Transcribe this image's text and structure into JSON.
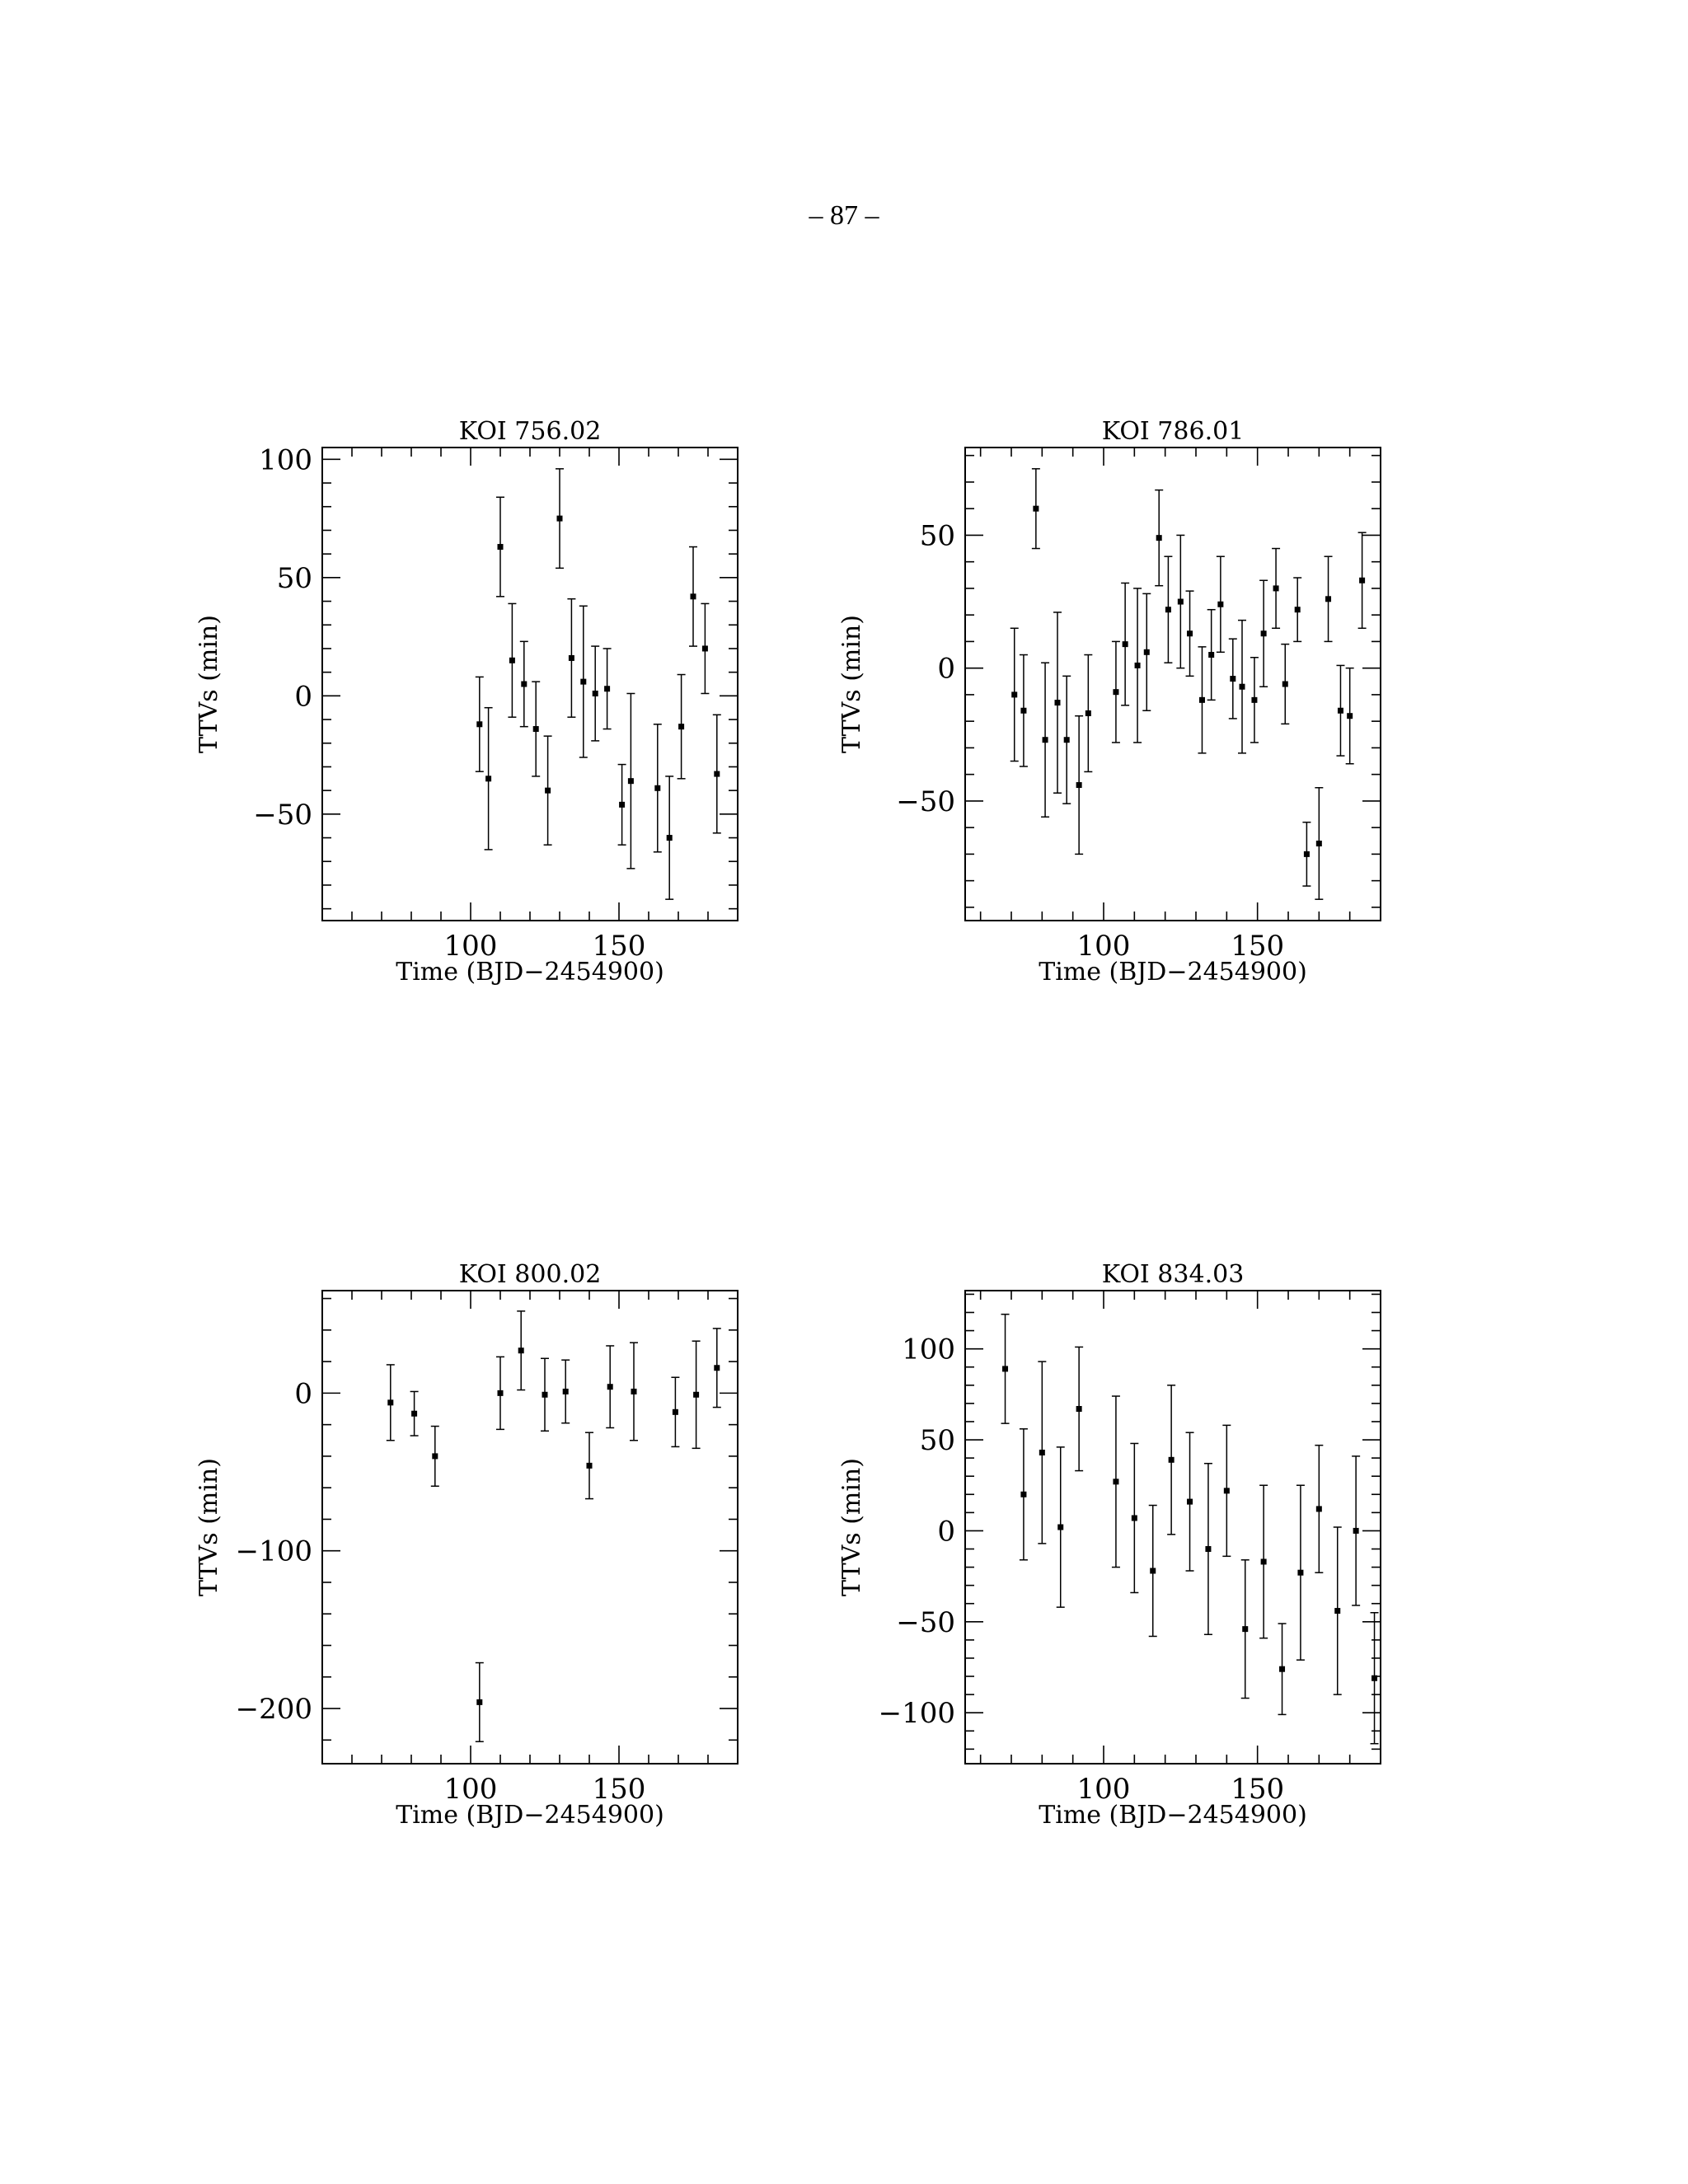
{
  "page": {
    "number": "– 87 –"
  },
  "chart_data": [
    {
      "type": "scatter",
      "title": "KOI 756.02",
      "xlabel": "Time (BJD−2454900)",
      "ylabel": "TTVs (min)",
      "xlim": [
        50,
        190
      ],
      "ylim": [
        -95,
        105
      ],
      "xticks": [
        {
          "v": 100,
          "label": "100"
        },
        {
          "v": 150,
          "label": "150"
        }
      ],
      "yticks": [
        {
          "v": 100,
          "label": "100"
        },
        {
          "v": 50,
          "label": "50"
        },
        {
          "v": 0,
          "label": "0"
        },
        {
          "v": -50,
          "label": "−50"
        }
      ],
      "series": [
        {
          "points": [
            {
              "x": 103,
              "y": -12,
              "err": 20
            },
            {
              "x": 106,
              "y": -35,
              "err": 30
            },
            {
              "x": 110,
              "y": 63,
              "err": 21
            },
            {
              "x": 114,
              "y": 15,
              "err": 24
            },
            {
              "x": 118,
              "y": 5,
              "err": 18
            },
            {
              "x": 122,
              "y": -14,
              "err": 20
            },
            {
              "x": 126,
              "y": -40,
              "err": 23
            },
            {
              "x": 130,
              "y": 75,
              "err": 21
            },
            {
              "x": 134,
              "y": 16,
              "err": 25
            },
            {
              "x": 138,
              "y": 6,
              "err": 32
            },
            {
              "x": 142,
              "y": 1,
              "err": 20
            },
            {
              "x": 146,
              "y": 3,
              "err": 17
            },
            {
              "x": 151,
              "y": -46,
              "err": 17
            },
            {
              "x": 154,
              "y": -36,
              "err": 37
            },
            {
              "x": 163,
              "y": -39,
              "err": 27
            },
            {
              "x": 167,
              "y": -60,
              "err": 26
            },
            {
              "x": 171,
              "y": -13,
              "err": 22
            },
            {
              "x": 175,
              "y": 42,
              "err": 21
            },
            {
              "x": 179,
              "y": 20,
              "err": 19
            },
            {
              "x": 183,
              "y": -33,
              "err": 25
            }
          ]
        }
      ]
    },
    {
      "type": "scatter",
      "title": "KOI 786.01",
      "xlabel": "Time (BJD−2454900)",
      "ylabel": "TTVs (min)",
      "xlim": [
        55,
        190
      ],
      "ylim": [
        -95,
        83
      ],
      "xticks": [
        {
          "v": 100,
          "label": "100"
        },
        {
          "v": 150,
          "label": "150"
        }
      ],
      "yticks": [
        {
          "v": 50,
          "label": "50"
        },
        {
          "v": 0,
          "label": "0"
        },
        {
          "v": -50,
          "label": "−50"
        }
      ],
      "series": [
        {
          "points": [
            {
              "x": 71,
              "y": -10,
              "err": 25
            },
            {
              "x": 74,
              "y": -16,
              "err": 21
            },
            {
              "x": 78,
              "y": 60,
              "err": 15
            },
            {
              "x": 81,
              "y": -27,
              "err": 29
            },
            {
              "x": 85,
              "y": -13,
              "err": 34
            },
            {
              "x": 88,
              "y": -27,
              "err": 24
            },
            {
              "x": 92,
              "y": -44,
              "err": 26
            },
            {
              "x": 95,
              "y": -17,
              "err": 22
            },
            {
              "x": 104,
              "y": -9,
              "err": 19
            },
            {
              "x": 107,
              "y": 9,
              "err": 23
            },
            {
              "x": 111,
              "y": 1,
              "err": 29
            },
            {
              "x": 114,
              "y": 6,
              "err": 22
            },
            {
              "x": 118,
              "y": 49,
              "err": 18
            },
            {
              "x": 121,
              "y": 22,
              "err": 20
            },
            {
              "x": 125,
              "y": 25,
              "err": 25
            },
            {
              "x": 128,
              "y": 13,
              "err": 16
            },
            {
              "x": 132,
              "y": -12,
              "err": 20
            },
            {
              "x": 135,
              "y": 5,
              "err": 17
            },
            {
              "x": 138,
              "y": 24,
              "err": 18
            },
            {
              "x": 142,
              "y": -4,
              "err": 15
            },
            {
              "x": 145,
              "y": -7,
              "err": 25
            },
            {
              "x": 149,
              "y": -12,
              "err": 16
            },
            {
              "x": 152,
              "y": 13,
              "err": 20
            },
            {
              "x": 156,
              "y": 30,
              "err": 15
            },
            {
              "x": 159,
              "y": -6,
              "err": 15
            },
            {
              "x": 163,
              "y": 22,
              "err": 12
            },
            {
              "x": 166,
              "y": -70,
              "err": 12
            },
            {
              "x": 170,
              "y": -66,
              "err": 21
            },
            {
              "x": 173,
              "y": 26,
              "err": 16
            },
            {
              "x": 177,
              "y": -16,
              "err": 17
            },
            {
              "x": 180,
              "y": -18,
              "err": 18
            },
            {
              "x": 184,
              "y": 33,
              "err": 18
            }
          ]
        }
      ]
    },
    {
      "type": "scatter",
      "title": "KOI 800.02",
      "xlabel": "Time (BJD−2454900)",
      "ylabel": "TTVs (min)",
      "xlim": [
        50,
        190
      ],
      "ylim": [
        -235,
        65
      ],
      "xticks": [
        {
          "v": 100,
          "label": "100"
        },
        {
          "v": 150,
          "label": "150"
        }
      ],
      "yticks": [
        {
          "v": 0,
          "label": "0"
        },
        {
          "v": -100,
          "label": "−100"
        },
        {
          "v": -200,
          "label": "−200"
        }
      ],
      "series": [
        {
          "points": [
            {
              "x": 73,
              "y": -6,
              "err": 24
            },
            {
              "x": 81,
              "y": -13,
              "err": 14
            },
            {
              "x": 88,
              "y": -40,
              "err": 19
            },
            {
              "x": 103,
              "y": -196,
              "err": 25
            },
            {
              "x": 110,
              "y": 0,
              "err": 23
            },
            {
              "x": 117,
              "y": 27,
              "err": 25
            },
            {
              "x": 125,
              "y": -1,
              "err": 23
            },
            {
              "x": 132,
              "y": 1,
              "err": 20
            },
            {
              "x": 140,
              "y": -46,
              "err": 21
            },
            {
              "x": 147,
              "y": 4,
              "err": 26
            },
            {
              "x": 155,
              "y": 1,
              "err": 31
            },
            {
              "x": 169,
              "y": -12,
              "err": 22
            },
            {
              "x": 176,
              "y": -1,
              "err": 34
            },
            {
              "x": 183,
              "y": 16,
              "err": 25
            }
          ]
        }
      ]
    },
    {
      "type": "scatter",
      "title": "KOI 834.03",
      "xlabel": "Time (BJD−2454900)",
      "ylabel": "TTVs (min)",
      "xlim": [
        55,
        190
      ],
      "ylim": [
        -128,
        132
      ],
      "xticks": [
        {
          "v": 100,
          "label": "100"
        },
        {
          "v": 150,
          "label": "150"
        }
      ],
      "yticks": [
        {
          "v": 100,
          "label": "100"
        },
        {
          "v": 50,
          "label": "50"
        },
        {
          "v": 0,
          "label": "0"
        },
        {
          "v": -50,
          "label": "−50"
        },
        {
          "v": -100,
          "label": "−100"
        }
      ],
      "series": [
        {
          "points": [
            {
              "x": 68,
              "y": 89,
              "err": 30
            },
            {
              "x": 74,
              "y": 20,
              "err": 36
            },
            {
              "x": 80,
              "y": 43,
              "err": 50
            },
            {
              "x": 86,
              "y": 2,
              "err": 44
            },
            {
              "x": 92,
              "y": 67,
              "err": 34
            },
            {
              "x": 104,
              "y": 27,
              "err": 47
            },
            {
              "x": 110,
              "y": 7,
              "err": 41
            },
            {
              "x": 116,
              "y": -22,
              "err": 36
            },
            {
              "x": 122,
              "y": 39,
              "err": 41
            },
            {
              "x": 128,
              "y": 16,
              "err": 38
            },
            {
              "x": 134,
              "y": -10,
              "err": 47
            },
            {
              "x": 140,
              "y": 22,
              "err": 36
            },
            {
              "x": 146,
              "y": -54,
              "err": 38
            },
            {
              "x": 152,
              "y": -17,
              "err": 42
            },
            {
              "x": 158,
              "y": -76,
              "err": 25
            },
            {
              "x": 164,
              "y": -23,
              "err": 48
            },
            {
              "x": 170,
              "y": 12,
              "err": 35
            },
            {
              "x": 176,
              "y": -44,
              "err": 46
            },
            {
              "x": 182,
              "y": 0,
              "err": 41
            },
            {
              "x": 188,
              "y": -81,
              "err": 36
            }
          ]
        }
      ]
    }
  ]
}
